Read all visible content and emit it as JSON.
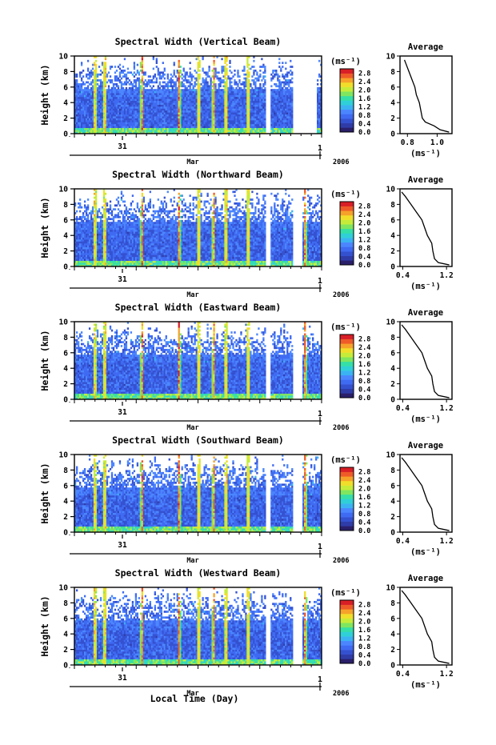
{
  "figure": {
    "x_axis_title": "Local Time (Day)",
    "month_label": "Mar",
    "year_label": "2006",
    "day_ticks": [
      "31",
      "1"
    ],
    "colorbar_unit": "(ms⁻¹)",
    "average_title": "Average",
    "height_label": "Height (km)"
  },
  "chart_data": [
    {
      "type": "heatmap",
      "title": "Spectral Width (Vertical Beam)",
      "ylabel": "Height (km)",
      "ylim": [
        0,
        10
      ],
      "y_ticks": [
        0,
        2,
        4,
        6,
        8,
        10
      ],
      "colorbar": {
        "label": "(ms⁻¹)",
        "ticks": [
          "0.0",
          "0.4",
          "0.8",
          "1.2",
          "1.6",
          "2.0",
          "2.4",
          "2.8"
        ],
        "range": [
          0,
          3.0
        ]
      },
      "bright_columns": [
        0.08,
        0.12,
        0.27,
        0.42,
        0.5,
        0.56,
        0.61,
        0.7,
        0.93
      ],
      "gaps": [
        [
          0.77,
          0.79
        ],
        [
          0.88,
          0.98
        ]
      ],
      "average_profile": {
        "title": "Average",
        "xlabel": "(ms⁻¹)",
        "x_ticks": [
          "0.8",
          "1.0"
        ],
        "xlim": [
          0.75,
          1.1
        ],
        "height_km": [
          0.2,
          0.5,
          1.0,
          1.5,
          2.0,
          3.0,
          4.0,
          5.0,
          6.0,
          7.0,
          8.0,
          9.0,
          9.5
        ],
        "width_ms": [
          1.08,
          1.02,
          0.98,
          0.92,
          0.9,
          0.89,
          0.88,
          0.86,
          0.85,
          0.83,
          0.81,
          0.79,
          0.78
        ]
      }
    },
    {
      "type": "heatmap",
      "title": "Spectral Width (Northward Beam)",
      "ylabel": "Height (km)",
      "ylim": [
        0,
        10
      ],
      "y_ticks": [
        0,
        2,
        4,
        6,
        8,
        10
      ],
      "colorbar": {
        "label": "(ms⁻¹)",
        "ticks": [
          "0.0",
          "0.4",
          "0.8",
          "1.2",
          "1.6",
          "2.0",
          "2.4",
          "2.8"
        ],
        "range": [
          0,
          3.0
        ]
      },
      "bright_columns": [
        0.08,
        0.12,
        0.27,
        0.42,
        0.5,
        0.56,
        0.61,
        0.7,
        0.93
      ],
      "gaps": [
        [
          0.77,
          0.79
        ],
        [
          0.88,
          0.92
        ]
      ],
      "average_profile": {
        "title": "Average",
        "xlabel": "(ms⁻¹)",
        "x_ticks": [
          "0.4",
          "1.2"
        ],
        "xlim": [
          0.35,
          1.3
        ],
        "height_km": [
          0.2,
          0.5,
          1.0,
          2.0,
          3.0,
          4.0,
          5.0,
          6.0,
          7.0,
          8.0,
          9.0,
          9.6
        ],
        "width_ms": [
          1.25,
          1.05,
          0.98,
          0.95,
          0.93,
          0.85,
          0.8,
          0.75,
          0.65,
          0.55,
          0.45,
          0.38
        ]
      }
    },
    {
      "type": "heatmap",
      "title": "Spectral Width (Eastward Beam)",
      "ylabel": "Height (km)",
      "ylim": [
        0,
        10
      ],
      "y_ticks": [
        0,
        2,
        4,
        6,
        8,
        10
      ],
      "colorbar": {
        "label": "(ms⁻¹)",
        "ticks": [
          "0.0",
          "0.4",
          "0.8",
          "1.2",
          "1.6",
          "2.0",
          "2.4",
          "2.8"
        ],
        "range": [
          0,
          3.0
        ]
      },
      "bright_columns": [
        0.08,
        0.12,
        0.27,
        0.42,
        0.5,
        0.56,
        0.61,
        0.7,
        0.93
      ],
      "gaps": [
        [
          0.77,
          0.79
        ],
        [
          0.88,
          0.92
        ]
      ],
      "average_profile": {
        "title": "Average",
        "xlabel": "(ms⁻¹)",
        "x_ticks": [
          "0.4",
          "1.2"
        ],
        "xlim": [
          0.35,
          1.3
        ],
        "height_km": [
          0.2,
          0.5,
          1.0,
          2.0,
          3.0,
          4.0,
          5.0,
          6.0,
          7.0,
          8.0,
          9.0,
          9.6
        ],
        "width_ms": [
          1.25,
          1.05,
          0.98,
          0.95,
          0.93,
          0.85,
          0.8,
          0.75,
          0.65,
          0.55,
          0.45,
          0.38
        ]
      }
    },
    {
      "type": "heatmap",
      "title": "Spectral Width (Southward Beam)",
      "ylabel": "Height (km)",
      "ylim": [
        0,
        10
      ],
      "y_ticks": [
        0,
        2,
        4,
        6,
        8,
        10
      ],
      "colorbar": {
        "label": "(ms⁻¹)",
        "ticks": [
          "0.0",
          "0.4",
          "0.8",
          "1.2",
          "1.6",
          "2.0",
          "2.4",
          "2.8"
        ],
        "range": [
          0,
          3.0
        ]
      },
      "bright_columns": [
        0.08,
        0.12,
        0.27,
        0.42,
        0.5,
        0.56,
        0.61,
        0.7,
        0.93
      ],
      "gaps": [
        [
          0.77,
          0.79
        ],
        [
          0.88,
          0.92
        ]
      ],
      "average_profile": {
        "title": "Average",
        "xlabel": "(ms⁻¹)",
        "x_ticks": [
          "0.4",
          "1.2"
        ],
        "xlim": [
          0.35,
          1.3
        ],
        "height_km": [
          0.2,
          0.5,
          1.0,
          2.0,
          3.0,
          4.0,
          5.0,
          6.0,
          7.0,
          8.0,
          9.0,
          9.6
        ],
        "width_ms": [
          1.25,
          1.05,
          0.98,
          0.95,
          0.93,
          0.85,
          0.8,
          0.75,
          0.65,
          0.55,
          0.45,
          0.38
        ]
      }
    },
    {
      "type": "heatmap",
      "title": "Spectral Width (Westward Beam)",
      "ylabel": "Height (km)",
      "ylim": [
        0,
        10
      ],
      "y_ticks": [
        0,
        2,
        4,
        6,
        8,
        10
      ],
      "colorbar": {
        "label": "(ms⁻¹)",
        "ticks": [
          "0.0",
          "0.4",
          "0.8",
          "1.2",
          "1.6",
          "2.0",
          "2.4",
          "2.8"
        ],
        "range": [
          0,
          3.0
        ]
      },
      "bright_columns": [
        0.08,
        0.12,
        0.27,
        0.42,
        0.5,
        0.56,
        0.61,
        0.7,
        0.93
      ],
      "gaps": [
        [
          0.77,
          0.79
        ],
        [
          0.88,
          0.92
        ]
      ],
      "average_profile": {
        "title": "Average",
        "xlabel": "(ms⁻¹)",
        "x_ticks": [
          "0.4",
          "1.2"
        ],
        "xlim": [
          0.35,
          1.3
        ],
        "height_km": [
          0.2,
          0.5,
          1.0,
          2.0,
          3.0,
          4.0,
          5.0,
          6.0,
          7.0,
          8.0,
          9.0,
          9.6
        ],
        "width_ms": [
          1.25,
          1.05,
          0.98,
          0.95,
          0.93,
          0.85,
          0.8,
          0.75,
          0.65,
          0.55,
          0.45,
          0.38
        ]
      }
    }
  ]
}
